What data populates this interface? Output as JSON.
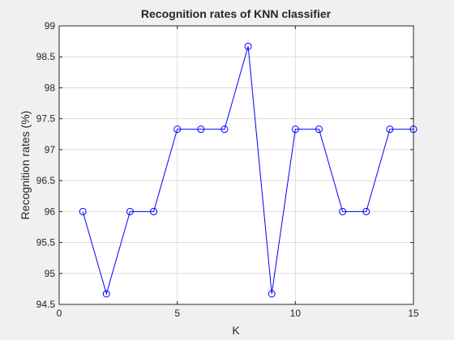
{
  "chart_data": {
    "type": "line",
    "title": "Recognition rates of KNN classifier",
    "xlabel": "K",
    "ylabel": "Recognition rates (%)",
    "xlim": [
      0,
      15
    ],
    "ylim": [
      94.5,
      99
    ],
    "xticks": [
      0,
      5,
      10,
      15
    ],
    "yticks": [
      94.5,
      95,
      95.5,
      96,
      96.5,
      97,
      97.5,
      98,
      98.5,
      99
    ],
    "xtick_labels": [
      "0",
      "5",
      "10",
      "15"
    ],
    "ytick_labels": [
      "94.5",
      "95",
      "95.5",
      "96",
      "96.5",
      "97",
      "97.5",
      "98",
      "98.5",
      "99"
    ],
    "grid": true,
    "marker": "circle",
    "line_color": "#0000ff",
    "series": [
      {
        "x": [
          1,
          2,
          3,
          4,
          5,
          6,
          7,
          8,
          9,
          10,
          11,
          12,
          13,
          14,
          15
        ],
        "values": [
          96.0,
          94.67,
          96.0,
          96.0,
          97.33,
          97.33,
          97.33,
          98.67,
          94.67,
          97.33,
          97.33,
          96.0,
          96.0,
          97.33,
          97.33
        ]
      }
    ]
  }
}
